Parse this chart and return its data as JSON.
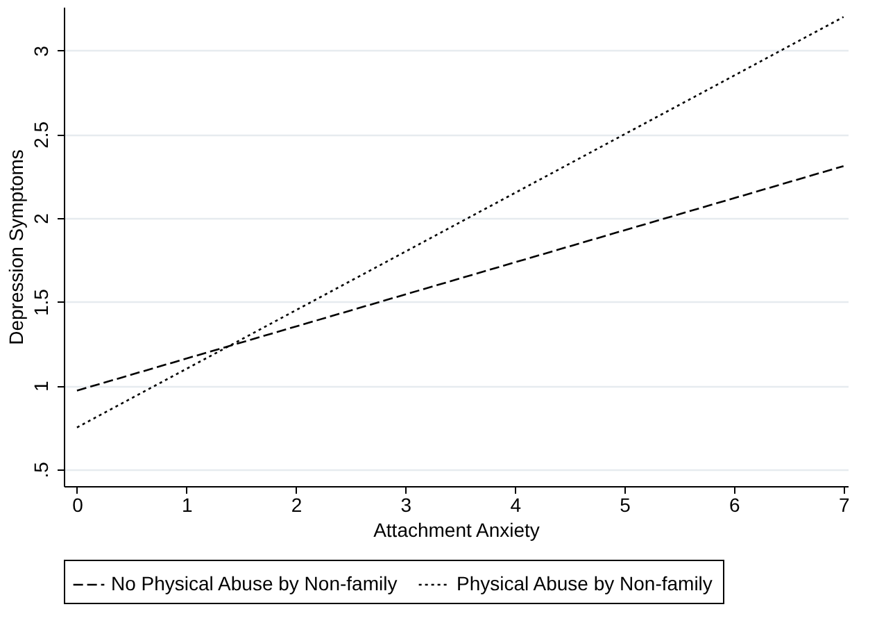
{
  "chart_data": {
    "type": "line",
    "xlabel": "Attachment Anxiety",
    "ylabel": "Depression Symptoms",
    "x": [
      0,
      7
    ],
    "series": [
      {
        "name": "No Physical Abuse by Non-family",
        "color": "#000000",
        "line_style": "dashed",
        "values": [
          0.97,
          2.31
        ]
      },
      {
        "name": "Physical Abuse by Non-family",
        "color": "#000000",
        "line_style": "dotted",
        "values": [
          0.75,
          3.2
        ]
      }
    ],
    "xlim": [
      -0.12,
      7.04
    ],
    "ylim": [
      0.4,
      3.26
    ],
    "xticks": [
      0,
      1,
      2,
      3,
      4,
      5,
      6,
      7
    ],
    "yticks": [
      {
        "value": 0.5,
        "label": ".5"
      },
      1,
      1.5,
      2,
      2.5,
      3
    ],
    "grid": "y",
    "legend": "bottom",
    "marker": "none"
  }
}
